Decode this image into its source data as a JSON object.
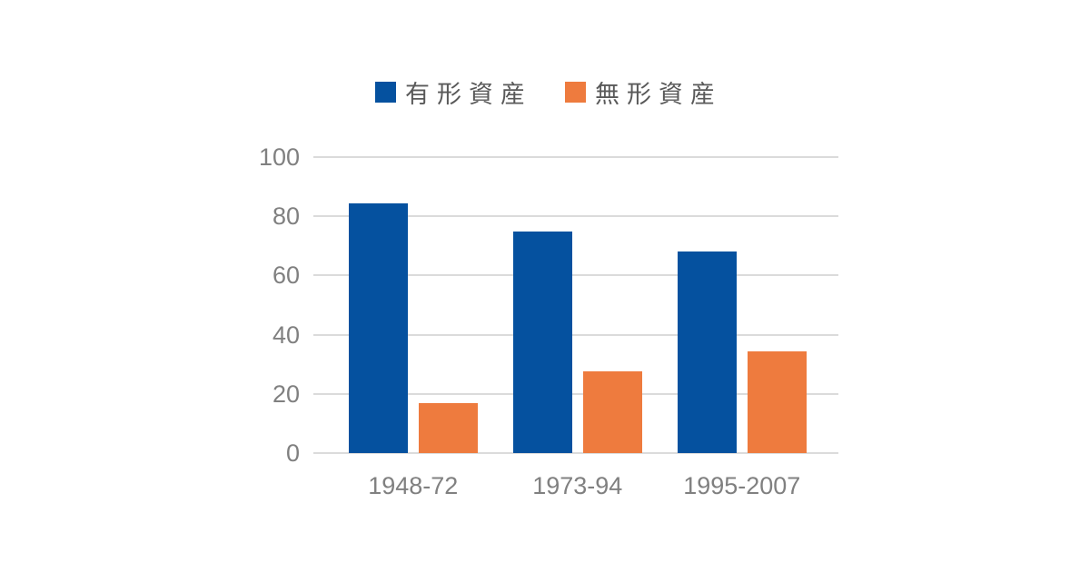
{
  "chart_data": {
    "type": "bar",
    "title": "",
    "categories": [
      "1948-72",
      "1973-94",
      "1995-2007"
    ],
    "series": [
      {
        "name": "有形資産",
        "color": "#05519F",
        "values": [
          84.5,
          75,
          68
        ]
      },
      {
        "name": "無形資産",
        "color": "#EE7B3E",
        "values": [
          17,
          27.5,
          34.5
        ]
      }
    ],
    "yticks": [
      0,
      20,
      40,
      60,
      80,
      100
    ],
    "ylim": [
      0,
      100
    ],
    "grid": true,
    "legend_position": "top",
    "colors": {
      "grid_line": "#DBDBDB",
      "axis_label": "#808080",
      "legend_label": "#595959",
      "background": "#FFFFFF"
    }
  }
}
